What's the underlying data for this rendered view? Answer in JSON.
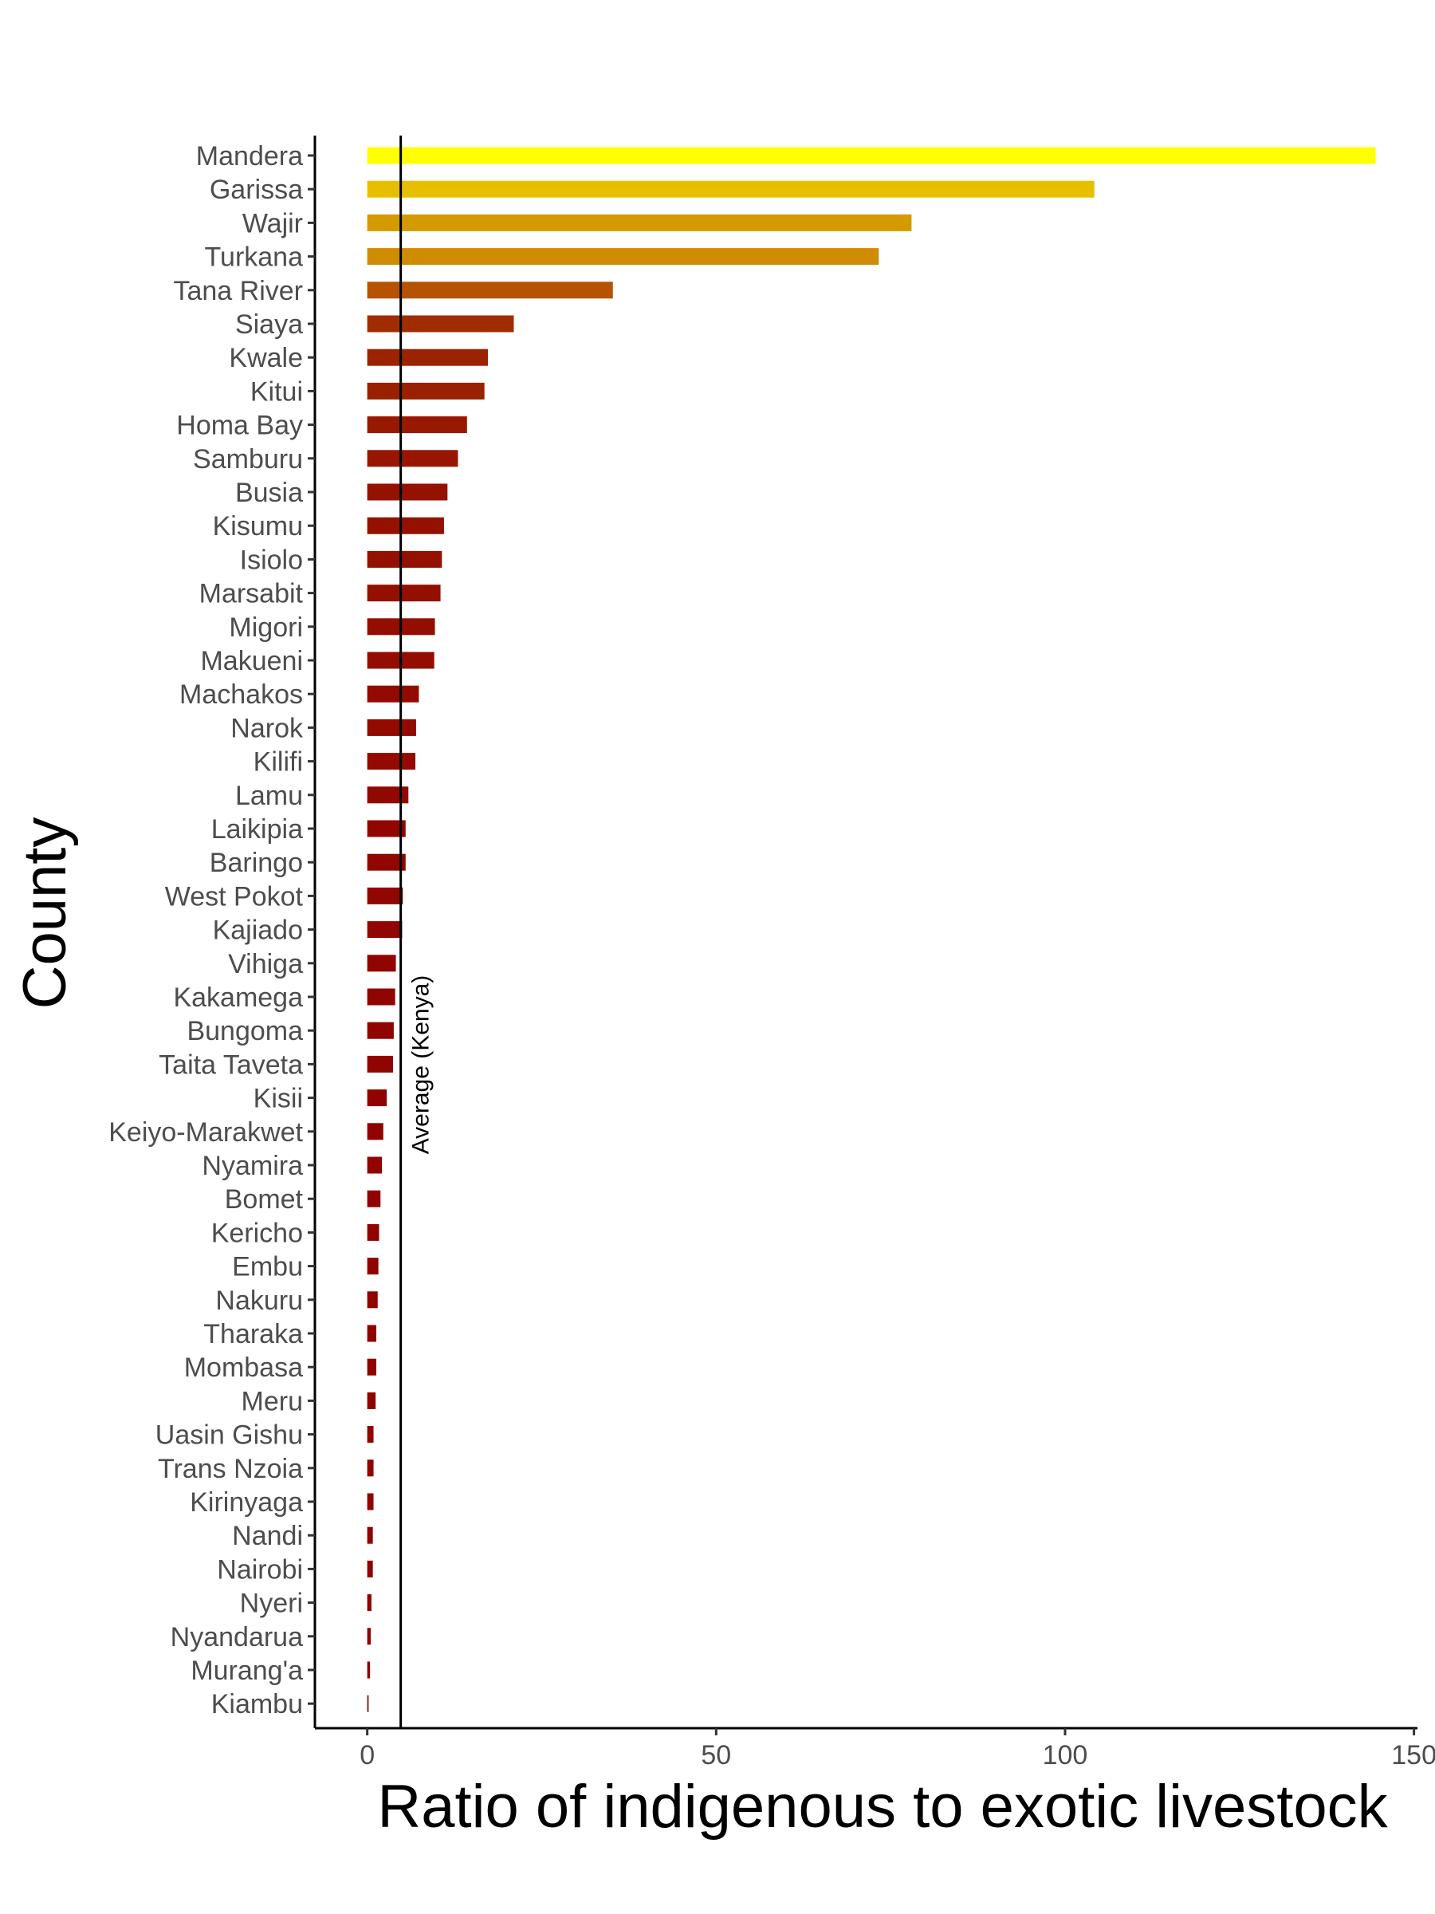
{
  "chart_data": {
    "type": "bar",
    "orientation": "horizontal",
    "title": "",
    "xlabel": "Ratio of indigenous to exotic livestock",
    "ylabel": "County",
    "xlim": [
      -7.5,
      150.5
    ],
    "xticks": [
      0,
      50,
      100,
      150
    ],
    "xtick_labels": [
      "0",
      "50",
      "100",
      "150"
    ],
    "categories": [
      "Mandera",
      "Garissa",
      "Wajir",
      "Turkana",
      "Tana River",
      "Siaya",
      "Kwale",
      "Kitui",
      "Homa Bay",
      "Samburu",
      "Busia",
      "Kisumu",
      "Isiolo",
      "Marsabit",
      "Migori",
      "Makueni",
      "Machakos",
      "Narok",
      "Kilifi",
      "Lamu",
      "Laikipia",
      "Baringo",
      "West Pokot",
      "Kajiado",
      "Vihiga",
      "Kakamega",
      "Bungoma",
      "Taita Taveta",
      "Kisii",
      "Keiyo-Marakwet",
      "Nyamira",
      "Bomet",
      "Kericho",
      "Embu",
      "Nakuru",
      "Tharaka",
      "Mombasa",
      "Meru",
      "Uasin Gishu",
      "Trans Nzoia",
      "Kirinyaga",
      "Nandi",
      "Nairobi",
      "Nyeri",
      "Nyandarua",
      "Murang'a",
      "Kiambu"
    ],
    "values": [
      144.5,
      104.2,
      78.0,
      73.3,
      35.2,
      21.0,
      17.3,
      16.8,
      14.3,
      13.0,
      11.5,
      11.0,
      10.7,
      10.5,
      9.7,
      9.6,
      7.4,
      7.0,
      6.9,
      5.9,
      5.5,
      5.5,
      5.1,
      5.0,
      4.1,
      4.0,
      3.8,
      3.7,
      2.8,
      2.3,
      2.1,
      1.9,
      1.7,
      1.6,
      1.5,
      1.3,
      1.3,
      1.2,
      0.9,
      0.9,
      0.9,
      0.8,
      0.8,
      0.6,
      0.5,
      0.4,
      0.2
    ],
    "colors": [
      "#ffff00",
      "#e6c000",
      "#d49a00",
      "#d08c00",
      "#b65300",
      "#a02d00",
      "#9c2300",
      "#9a2100",
      "#971a00",
      "#961600",
      "#941200",
      "#941100",
      "#941000",
      "#931000",
      "#930e00",
      "#930e00",
      "#920a00",
      "#920a00",
      "#920a00",
      "#910800",
      "#910700",
      "#910700",
      "#910600",
      "#910600",
      "#910500",
      "#910500",
      "#900500",
      "#900500",
      "#900400",
      "#900300",
      "#900300",
      "#900300",
      "#900200",
      "#900200",
      "#900200",
      "#900200",
      "#900200",
      "#900200",
      "#900100",
      "#900100",
      "#900100",
      "#900100",
      "#900100",
      "#900100",
      "#900100",
      "#900100",
      "#900000"
    ],
    "reference_line": {
      "value": 4.8,
      "label": "Average (Kenya)"
    },
    "grid": false,
    "legend": "none"
  }
}
